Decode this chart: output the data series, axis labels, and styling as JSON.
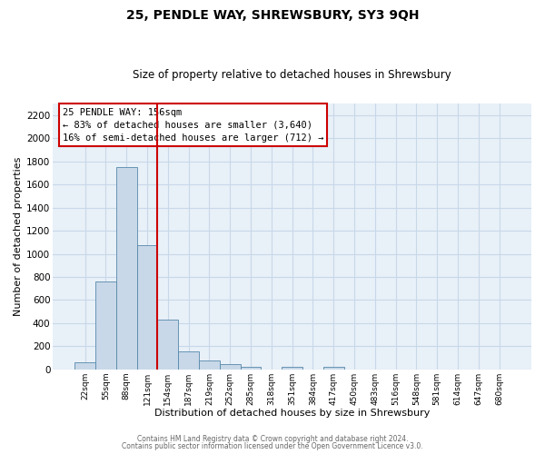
{
  "title": "25, PENDLE WAY, SHREWSBURY, SY3 9QH",
  "subtitle": "Size of property relative to detached houses in Shrewsbury",
  "xlabel": "Distribution of detached houses by size in Shrewsbury",
  "ylabel": "Number of detached properties",
  "bar_color": "#c8d8e8",
  "bar_edge_color": "#5588aa",
  "bin_labels": [
    "22sqm",
    "55sqm",
    "88sqm",
    "121sqm",
    "154sqm",
    "187sqm",
    "219sqm",
    "252sqm",
    "285sqm",
    "318sqm",
    "351sqm",
    "384sqm",
    "417sqm",
    "450sqm",
    "483sqm",
    "516sqm",
    "548sqm",
    "581sqm",
    "614sqm",
    "647sqm",
    "680sqm"
  ],
  "bar_values": [
    60,
    760,
    1750,
    1075,
    430,
    155,
    80,
    45,
    25,
    0,
    20,
    0,
    20,
    0,
    0,
    0,
    0,
    0,
    0,
    0,
    0
  ],
  "ylim": [
    0,
    2300
  ],
  "yticks": [
    0,
    200,
    400,
    600,
    800,
    1000,
    1200,
    1400,
    1600,
    1800,
    2000,
    2200
  ],
  "vline_color": "#cc0000",
  "annotation_title": "25 PENDLE WAY: 156sqm",
  "annotation_line1": "← 83% of detached houses are smaller (3,640)",
  "annotation_line2": "16% of semi-detached houses are larger (712) →",
  "footer_line1": "Contains HM Land Registry data © Crown copyright and database right 2024.",
  "footer_line2": "Contains public sector information licensed under the Open Government Licence v3.0.",
  "grid_color": "#c8d8e8",
  "background_color": "#e8f0f8"
}
